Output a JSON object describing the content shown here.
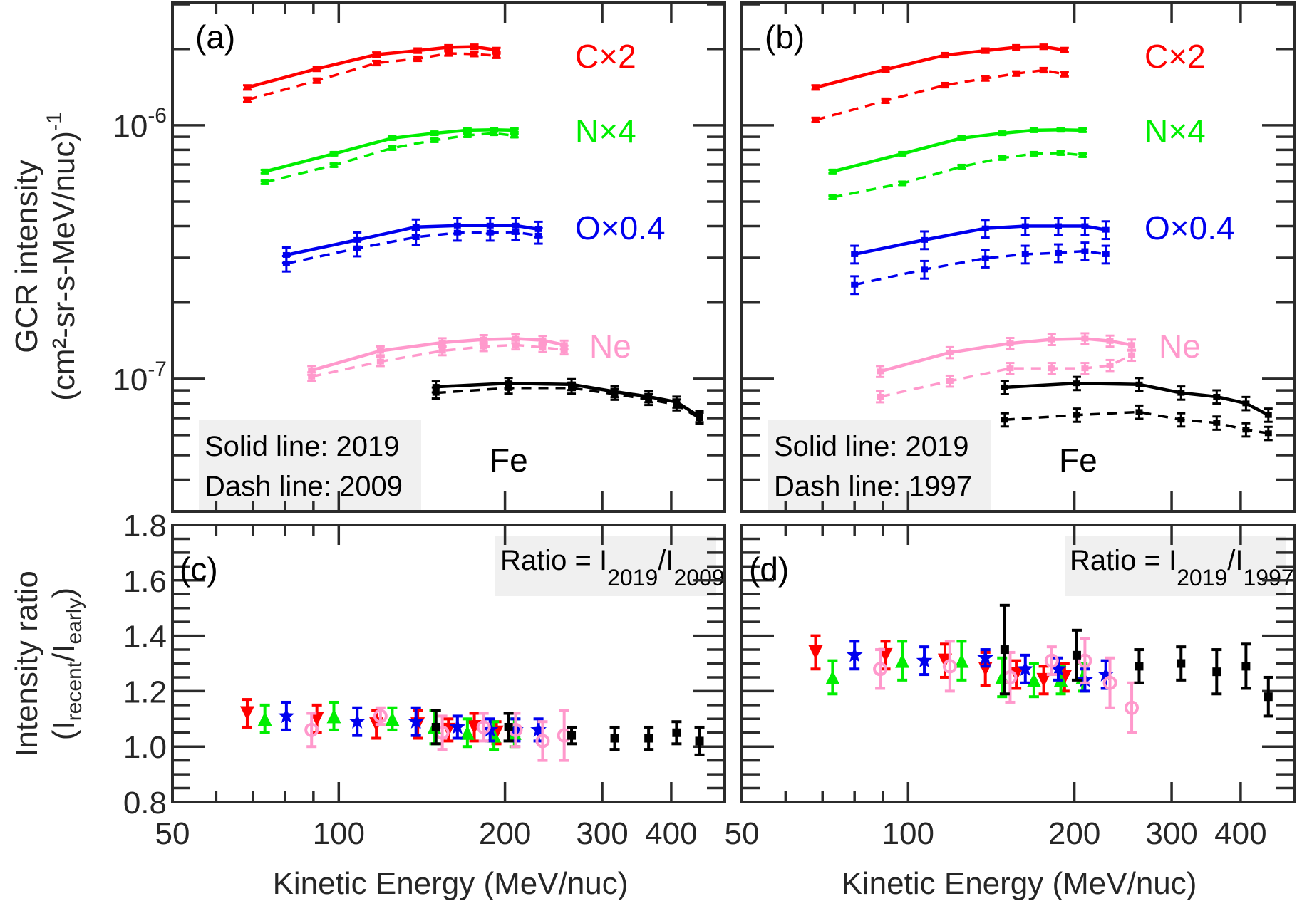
{
  "chart_data": [
    {
      "panel": "a",
      "type": "line",
      "panel_label": "(a)",
      "xscale": "log",
      "yscale": "log",
      "xlim": [
        50,
        500
      ],
      "ylim": [
        3e-08,
        3.04e-06
      ],
      "ylabel_line1": "GCR intensity",
      "ylabel_line2": "(cm²-sr-s-MeV/nuc)",
      "ylabel_exponent": "-1",
      "yticks": [
        {
          "value": 1e-06,
          "base": "10",
          "exp": "-6"
        },
        {
          "value": 1e-07,
          "base": "10",
          "exp": "-7"
        }
      ],
      "legend_box": [
        "Solid line: 2019",
        "Dash line: 2009"
      ],
      "series": [
        {
          "name": "C×2",
          "color": "#ff0000",
          "label_pos": "top-right",
          "x": [
            68.3,
            91.3,
            117,
            139,
            158,
            176,
            193
          ],
          "solid_2019": [
            1.41e-06,
            1.67e-06,
            1.9e-06,
            1.97e-06,
            2.03e-06,
            2.04e-06,
            1.98e-06
          ],
          "dashed_early": [
            1.26e-06,
            1.5e-06,
            1.76e-06,
            1.83e-06,
            1.92e-06,
            1.91e-06,
            1.88e-06
          ],
          "err_frac": 0.02
        },
        {
          "name": "N×4",
          "color": "#00ee00",
          "x": [
            73.5,
            98,
            125,
            149,
            171,
            191,
            208
          ],
          "solid_2019": [
            6.57e-07,
            7.72e-07,
            8.9e-07,
            9.3e-07,
            9.56e-07,
            9.6e-07,
            9.56e-07
          ],
          "dashed_early": [
            5.96e-07,
            6.96e-07,
            8.13e-07,
            8.73e-07,
            9.13e-07,
            9.3e-07,
            9.1e-07
          ],
          "err_frac": 0.015
        },
        {
          "name": "O×0.4",
          "color": "#0000ee",
          "x": [
            80.4,
            108,
            138,
            164,
            188,
            209,
            230
          ],
          "solid_2019": [
            3.08e-07,
            3.53e-07,
            3.97e-07,
            4.02e-07,
            4.02e-07,
            4.02e-07,
            3.89e-07
          ],
          "dashed_early": [
            2.85e-07,
            3.27e-07,
            3.62e-07,
            3.77e-07,
            3.77e-07,
            3.79e-07,
            3.67e-07
          ],
          "err_frac": 0.07
        },
        {
          "name": "Ne",
          "color": "#ff99cc",
          "x": [
            89.3,
            119,
            154,
            183,
            209,
            234,
            256
          ],
          "solid_2019": [
            1.08e-07,
            1.29e-07,
            1.39e-07,
            1.43e-07,
            1.44e-07,
            1.42e-07,
            1.36e-07
          ],
          "dashed_early": [
            1.02e-07,
            1.17e-07,
            1.29e-07,
            1.34e-07,
            1.36e-07,
            1.33e-07,
            1.3e-07
          ],
          "err_frac": 0.04
        },
        {
          "name": "Fe",
          "color": "#000000",
          "x": [
            150,
            203,
            264,
            316,
            364,
            409,
            450
          ],
          "solid_2019": [
            9.3e-08,
            9.6e-08,
            9.5e-08,
            8.9e-08,
            8.5e-08,
            8.1e-08,
            7.1e-08
          ],
          "dashed_early": [
            8.8e-08,
            9.2e-08,
            9.2e-08,
            8.7e-08,
            8.3e-08,
            7.9e-08,
            7e-08
          ],
          "err_frac": 0.05
        }
      ]
    },
    {
      "panel": "b",
      "type": "line",
      "panel_label": "(b)",
      "xscale": "log",
      "yscale": "log",
      "xlim": [
        50,
        500
      ],
      "ylim": [
        3e-08,
        3.04e-06
      ],
      "legend_box": [
        "Solid line: 2019",
        "Dash line: 1997"
      ],
      "series": [
        {
          "name": "C×2",
          "color": "#ff0000",
          "x": [
            68,
            91,
            116.6,
            138,
            157,
            176,
            192
          ],
          "solid_2019": [
            1.41e-06,
            1.66e-06,
            1.89e-06,
            1.97e-06,
            2.03e-06,
            2.04e-06,
            1.98e-06
          ],
          "dashed_early": [
            1.05e-06,
            1.25e-06,
            1.44e-06,
            1.53e-06,
            1.6e-06,
            1.65e-06,
            1.59e-06
          ],
          "err_frac": 0.02
        },
        {
          "name": "N×4",
          "color": "#00ee00",
          "x": [
            73,
            97.6,
            125,
            148,
            169,
            189,
            207
          ],
          "solid_2019": [
            6.57e-07,
            7.72e-07,
            8.9e-07,
            9.3e-07,
            9.56e-07,
            9.6e-07,
            9.56e-07
          ],
          "dashed_early": [
            5.2e-07,
            5.9e-07,
            6.87e-07,
            7.43e-07,
            7.72e-07,
            7.77e-07,
            7.62e-07
          ],
          "err_frac": 0.015
        },
        {
          "name": "O×0.4",
          "color": "#0000ee",
          "x": [
            80,
            107,
            138,
            163,
            187,
            209,
            228
          ],
          "solid_2019": [
            3.1e-07,
            3.53e-07,
            3.92e-07,
            4e-07,
            4e-07,
            4e-07,
            3.87e-07
          ],
          "dashed_early": [
            2.35e-07,
            2.7e-07,
            2.99e-07,
            3.1e-07,
            3.14e-07,
            3.19e-07,
            3.1e-07
          ],
          "err_frac": 0.08
        },
        {
          "name": "Ne",
          "color": "#ff99cc",
          "x": [
            89,
            119,
            153,
            182,
            209,
            232,
            254
          ],
          "solid_2019": [
            1.07e-07,
            1.27e-07,
            1.38e-07,
            1.43e-07,
            1.44e-07,
            1.41e-07,
            1.36e-07
          ],
          "dashed_early": [
            8.5e-08,
            9.8e-08,
            1.1e-07,
            1.1e-07,
            1.1e-07,
            1.13e-07,
            1.24e-07
          ],
          "err_frac": 0.05
        },
        {
          "name": "Fe",
          "color": "#000000",
          "x": [
            149.6,
            202,
            262,
            312,
            362,
            409,
            449
          ],
          "solid_2019": [
            9.25e-08,
            9.6e-08,
            9.5e-08,
            8.8e-08,
            8.5e-08,
            8e-08,
            7.2e-08
          ],
          "dashed_early": [
            6.9e-08,
            7.2e-08,
            7.4e-08,
            6.9e-08,
            6.7e-08,
            6.3e-08,
            6.1e-08
          ],
          "err_frac": 0.06
        }
      ]
    },
    {
      "panel": "c",
      "type": "scatter",
      "panel_label": "(c)",
      "xscale": "log",
      "xlim": [
        50,
        500
      ],
      "ylim": [
        0.8,
        1.8
      ],
      "xlabel": "Kinetic Energy (MeV/nuc)",
      "ylabel_line1": "Intensity ratio",
      "ylabel_line2": "(I_recent/I_early)",
      "yticks": [
        "0.8",
        "1.0",
        "1.2",
        "1.4",
        "1.6",
        "1.8"
      ],
      "xticks": [
        "50",
        "100",
        "200",
        "300",
        "400"
      ],
      "ratio_box": {
        "prefix": "Ratio = I",
        "sub1": "2019",
        "mid": "/I",
        "sub2": "2009"
      },
      "series": [
        {
          "name": "C",
          "marker": "triangle-down",
          "color": "#ff0000",
          "x": [
            68.3,
            91.3,
            117,
            139,
            158,
            176,
            193
          ],
          "y": [
            1.12,
            1.1,
            1.08,
            1.08,
            1.06,
            1.07,
            1.05
          ],
          "err": [
            0.05,
            0.05,
            0.05,
            0.05,
            0.04,
            0.05,
            0.04
          ]
        },
        {
          "name": "N",
          "marker": "triangle-up",
          "color": "#00ee00",
          "x": [
            73.5,
            98,
            125,
            149,
            171,
            191,
            208
          ],
          "y": [
            1.1,
            1.11,
            1.1,
            1.07,
            1.05,
            1.04,
            1.05
          ],
          "err": [
            0.05,
            0.05,
            0.04,
            0.06,
            0.05,
            0.05,
            0.05
          ]
        },
        {
          "name": "O",
          "marker": "star",
          "color": "#0000ee",
          "x": [
            80.4,
            108,
            138,
            164,
            188,
            209,
            230
          ],
          "y": [
            1.11,
            1.09,
            1.09,
            1.07,
            1.06,
            1.06,
            1.06
          ],
          "err": [
            0.05,
            0.05,
            0.05,
            0.04,
            0.04,
            0.04,
            0.04
          ]
        },
        {
          "name": "Ne",
          "marker": "circle",
          "color": "#ff99cc",
          "x": [
            89.3,
            119,
            154,
            183,
            209,
            234,
            256
          ],
          "y": [
            1.06,
            1.11,
            1.05,
            1.07,
            1.06,
            1.02,
            1.04
          ],
          "err": [
            0.06,
            0.03,
            0.06,
            0.05,
            0.06,
            0.07,
            0.09
          ]
        },
        {
          "name": "Fe",
          "marker": "square",
          "color": "#000000",
          "x": [
            150,
            203,
            264,
            316,
            364,
            409,
            450
          ],
          "y": [
            1.07,
            1.07,
            1.04,
            1.03,
            1.03,
            1.05,
            1.02
          ],
          "err": [
            0.06,
            0.05,
            0.03,
            0.04,
            0.04,
            0.04,
            0.05
          ]
        }
      ]
    },
    {
      "panel": "d",
      "type": "scatter",
      "panel_label": "(d)",
      "xscale": "log",
      "xlim": [
        50,
        500
      ],
      "ylim": [
        0.8,
        1.8
      ],
      "xlabel": "Kinetic Energy (MeV/nuc)",
      "xticks": [
        "50",
        "100",
        "200",
        "300",
        "400"
      ],
      "ratio_box": {
        "prefix": "Ratio = I",
        "sub1": "2019",
        "mid": "/I",
        "sub2": "1997"
      },
      "series": [
        {
          "name": "C",
          "marker": "triangle-down",
          "color": "#ff0000",
          "x": [
            68,
            91,
            116.6,
            138,
            157,
            176,
            192
          ],
          "y": [
            1.34,
            1.33,
            1.31,
            1.28,
            1.26,
            1.24,
            1.25
          ],
          "err": [
            0.06,
            0.05,
            0.06,
            0.06,
            0.05,
            0.05,
            0.05
          ]
        },
        {
          "name": "N",
          "marker": "triangle-up",
          "color": "#00ee00",
          "x": [
            73,
            97.6,
            125,
            148,
            169,
            189,
            207
          ],
          "y": [
            1.25,
            1.31,
            1.31,
            1.25,
            1.24,
            1.24,
            1.25
          ],
          "err": [
            0.06,
            0.07,
            0.07,
            0.07,
            0.06,
            0.05,
            0.05
          ]
        },
        {
          "name": "O",
          "marker": "star",
          "color": "#0000ee",
          "x": [
            80,
            107,
            138,
            163,
            187,
            209,
            228
          ],
          "y": [
            1.33,
            1.31,
            1.32,
            1.28,
            1.28,
            1.24,
            1.26
          ],
          "err": [
            0.05,
            0.05,
            0.03,
            0.05,
            0.04,
            0.04,
            0.05
          ]
        },
        {
          "name": "Ne",
          "marker": "circle",
          "color": "#ff99cc",
          "x": [
            89,
            119,
            153,
            182,
            209,
            232,
            254
          ],
          "y": [
            1.28,
            1.29,
            1.25,
            1.31,
            1.31,
            1.23,
            1.14
          ],
          "err": [
            0.07,
            0.09,
            0.09,
            0.05,
            0.08,
            0.09,
            0.09
          ]
        },
        {
          "name": "Fe",
          "marker": "square",
          "color": "#000000",
          "x": [
            149.6,
            202,
            262,
            312,
            362,
            409,
            449
          ],
          "y": [
            1.35,
            1.33,
            1.29,
            1.3,
            1.27,
            1.29,
            1.18
          ],
          "err": [
            0.16,
            0.09,
            0.06,
            0.06,
            0.08,
            0.08,
            0.07
          ]
        }
      ]
    }
  ]
}
